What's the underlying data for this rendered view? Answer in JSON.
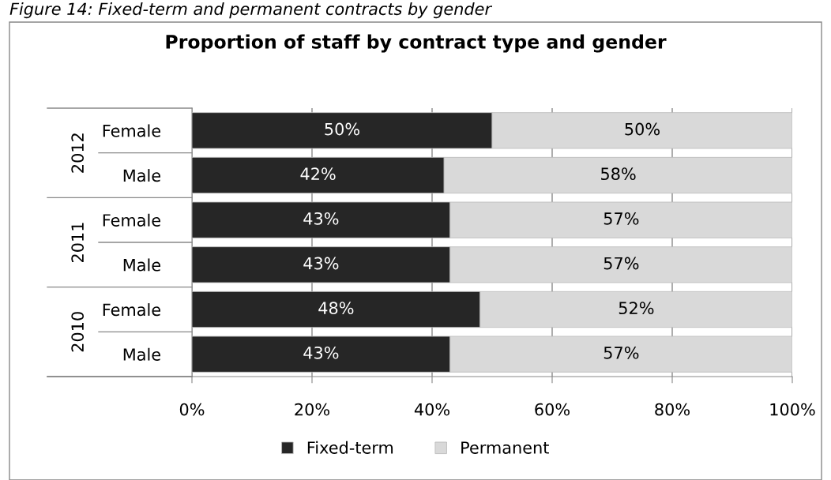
{
  "chart_data": {
    "type": "bar",
    "orientation": "horizontal",
    "stacked": true,
    "title": "Proportion of staff by contract type and gender",
    "categories": [
      "Female",
      "Male",
      "Female",
      "Male",
      "Female",
      "Male"
    ],
    "series": [
      {
        "name": "Fixed-term",
        "color": "#262626",
        "values": [
          50,
          42,
          43,
          43,
          48,
          43
        ],
        "value_labels": [
          "50%",
          "42%",
          "43%",
          "43%",
          "48%",
          "43%"
        ]
      },
      {
        "name": "Permanent",
        "color": "#d9d9d9",
        "values": [
          50,
          58,
          57,
          57,
          52,
          57
        ],
        "value_labels": [
          "50%",
          "58%",
          "57%",
          "57%",
          "52%",
          "57%"
        ]
      }
    ],
    "xlim": [
      0,
      100
    ],
    "xticks": [
      {
        "value": 0,
        "label": "0%"
      },
      {
        "value": 20,
        "label": "20%"
      },
      {
        "value": 40,
        "label": "40%"
      },
      {
        "value": 60,
        "label": "60%"
      },
      {
        "value": 80,
        "label": "80%"
      },
      {
        "value": 100,
        "label": "100%"
      }
    ],
    "grid": "x",
    "legend": "bottom",
    "annotations": [
      "Figure 14: Fixed-term and permanent contracts by gender",
      "2012",
      "2011",
      "2010"
    ]
  }
}
